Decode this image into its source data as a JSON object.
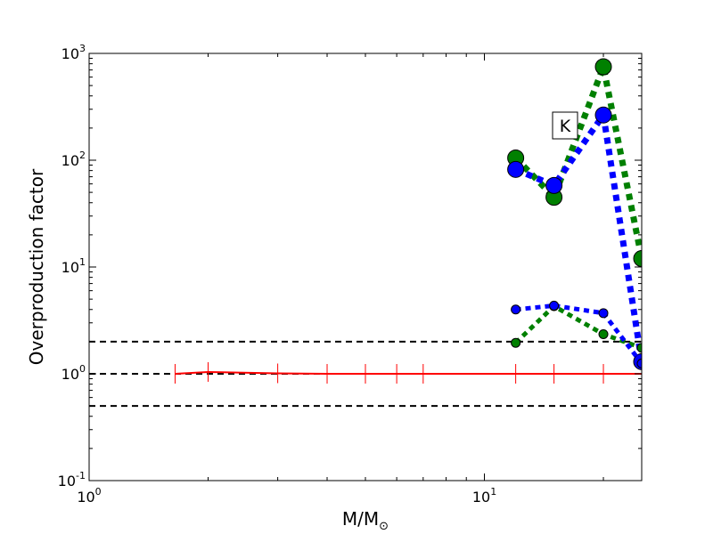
{
  "chart_data": {
    "type": "line",
    "xscale": "log",
    "yscale": "log",
    "xlim": [
      1,
      25
    ],
    "ylim": [
      0.1,
      1000
    ],
    "xlabel": "M/M",
    "xlabel_sub": "⊙",
    "ylabel": "Overproduction factor",
    "annotation": "K",
    "x_ticks": [
      {
        "value": 1,
        "base": "10",
        "exp": "0"
      },
      {
        "value": 10,
        "base": "10",
        "exp": "1"
      }
    ],
    "y_ticks": [
      {
        "value": 0.1,
        "base": "10",
        "exp": "-1"
      },
      {
        "value": 1,
        "base": "10",
        "exp": "0"
      },
      {
        "value": 10,
        "base": "10",
        "exp": "1"
      },
      {
        "value": 100,
        "base": "10",
        "exp": "2"
      },
      {
        "value": 1000,
        "base": "10",
        "exp": "3"
      }
    ],
    "hlines": [
      {
        "y": 2,
        "color": "#000000",
        "style": "dashed"
      },
      {
        "y": 1,
        "color": "#000000",
        "style": "dashed"
      },
      {
        "y": 0.5,
        "color": "#000000",
        "style": "dashed"
      }
    ],
    "series": [
      {
        "color": "#ff0000",
        "style": "solid",
        "marker": "vline",
        "x": [
          1.65,
          2,
          3,
          4,
          5,
          6,
          7,
          12,
          15,
          20,
          25
        ],
        "y": [
          1.0,
          1.04,
          1.01,
          1.0,
          1.0,
          1.0,
          1.0,
          1.0,
          1.0,
          1.0,
          1.0
        ]
      },
      {
        "color": "#008000",
        "style": "dotted-thick",
        "marker": "circle-large",
        "x": [
          12,
          15,
          20,
          25
        ],
        "y": [
          105,
          45,
          750,
          12
        ]
      },
      {
        "color": "#0000ff",
        "style": "dotted-thick",
        "marker": "circle-large",
        "x": [
          12,
          15,
          20,
          25
        ],
        "y": [
          82,
          58,
          265,
          1.3
        ]
      },
      {
        "color": "#008000",
        "style": "dotted-medium",
        "marker": "circle-small",
        "x": [
          12,
          15,
          20,
          25
        ],
        "y": [
          1.95,
          4.3,
          2.35,
          1.75
        ]
      },
      {
        "color": "#0000ff",
        "style": "dotted-medium",
        "marker": "circle-small",
        "x": [
          12,
          15,
          20,
          25
        ],
        "y": [
          4.0,
          4.35,
          3.7,
          1.25
        ]
      }
    ]
  }
}
